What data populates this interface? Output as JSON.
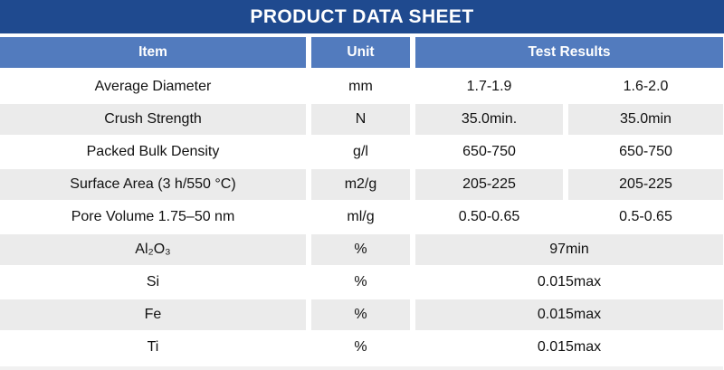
{
  "title": "PRODUCT DATA SHEET",
  "colors": {
    "title_bg": "#1F4A8F",
    "header_bg": "#527BBE",
    "alt_row_bg": "#EBEBEB",
    "text": "#111111",
    "header_text": "#FFFFFF"
  },
  "table": {
    "header": {
      "item": "Item",
      "unit": "Unit",
      "test_results": "Test Results"
    },
    "rows": [
      {
        "item": "Average Diameter",
        "unit": "mm",
        "result_a": "1.7-1.9",
        "result_b": "1.6-2.0"
      },
      {
        "item": "Crush Strength",
        "unit": "N",
        "result_a": "35.0min.",
        "result_b": "35.0min"
      },
      {
        "item": "Packed Bulk Density",
        "unit": "g/l",
        "result_a": "650-750",
        "result_b": "650-750"
      },
      {
        "item": "Surface Area (3 h/550 °C)",
        "unit": "m2/g",
        "result_a": "205-225",
        "result_b": "205-225"
      },
      {
        "item": "Pore Volume 1.75–50 nm",
        "unit": "ml/g",
        "result_a": "0.50-0.65",
        "result_b": "0.5-0.65"
      },
      {
        "item": "Al₂O₃",
        "unit": "%",
        "result": "97min"
      },
      {
        "item": "Si",
        "unit": "%",
        "result": "0.015max"
      },
      {
        "item": "Fe",
        "unit": "%",
        "result": "0.015max"
      },
      {
        "item": "Ti",
        "unit": "%",
        "result": "0.015max"
      }
    ]
  }
}
